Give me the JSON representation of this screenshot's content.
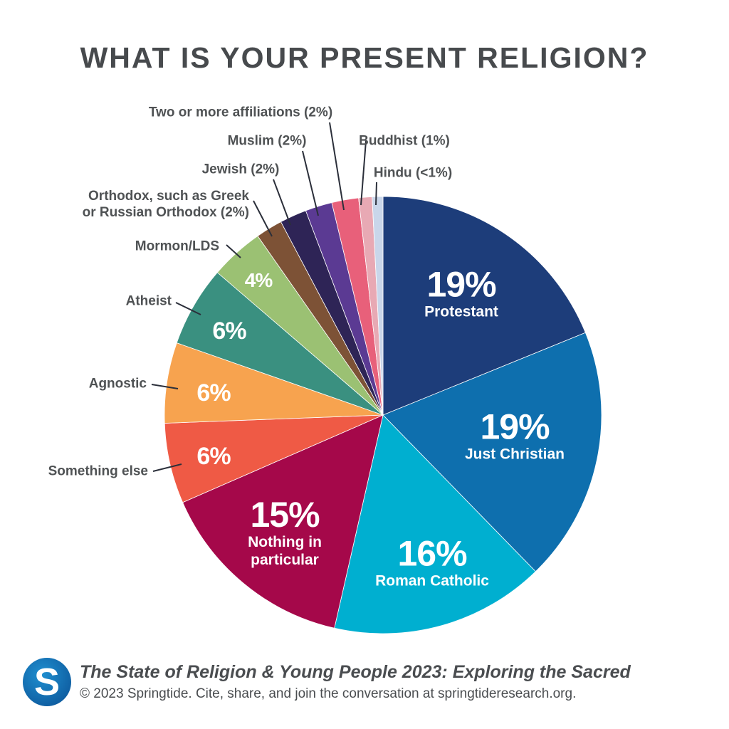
{
  "chart_data": {
    "type": "pie",
    "title": "WHAT IS YOUR PRESENT RELIGION?",
    "categories": [
      "Protestant",
      "Just Christian",
      "Roman Catholic",
      "Nothing in\nparticular",
      "Something else",
      "Agnostic",
      "Atheist",
      "Mormon/LDS",
      "Orthodox, such as Greek\nor Russian Orthodox (2%)",
      "Jewish (2%)",
      "Muslim (2%)",
      "Two or more affiliations (2%)",
      "Buddhist (1%)",
      "Hindu (<1%)"
    ],
    "values": [
      19,
      19,
      16,
      15,
      6,
      6,
      6,
      4,
      2,
      2,
      2,
      2,
      1,
      0.8
    ],
    "value_labels": [
      "19%",
      "19%",
      "16%",
      "15%",
      "6%",
      "6%",
      "6%",
      "4%",
      null,
      null,
      null,
      null,
      null,
      null
    ],
    "colors": [
      "#1d3d7a",
      "#0e6fae",
      "#00afd0",
      "#a5084a",
      "#ef5a45",
      "#f7a34f",
      "#3a9080",
      "#9bc173",
      "#7d5236",
      "#2e2456",
      "#5b3a93",
      "#e8607a",
      "#e8a9b4",
      "#c9d6ea"
    ]
  },
  "footer": {
    "logo": "S",
    "source_title": "The State of Religion & Young People 2023: Exploring the Sacred",
    "credit": "© 2023 Springtide. Cite, share, and join the conversation at springtideresearch.org."
  }
}
